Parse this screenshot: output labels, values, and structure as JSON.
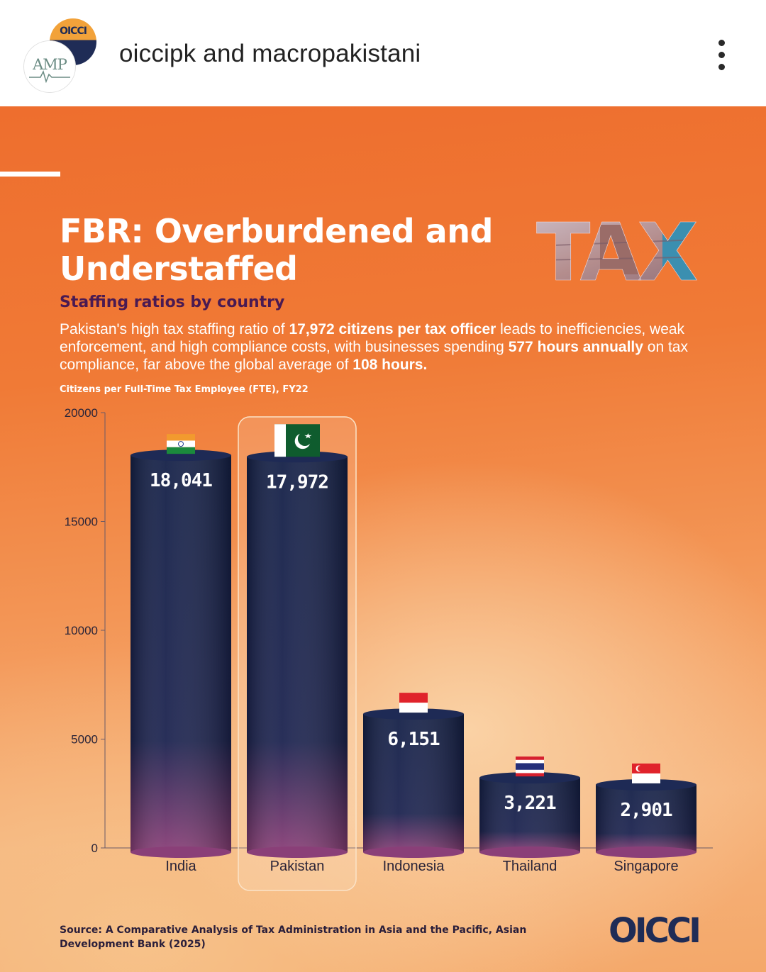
{
  "post": {
    "accounts": "oiccipk and macropakistani",
    "avatar_back_text": "OICCI",
    "avatar_front_text": "AMP"
  },
  "infographic": {
    "headline": "FBR: Overburdened and Understaffed",
    "subheading": "Staffing ratios by country",
    "description_parts": [
      "Pakistan's high tax staffing ratio of ",
      "17,972 citizens per tax officer",
      " leads to inefficiencies, weak enforcement, and high compliance costs, with businesses spending ",
      "577 hours annually",
      " on tax compliance, far above the global average of ",
      "108 hours."
    ],
    "tax_logo_text": "TAX",
    "chart_caption": "Citizens per Full-Time Tax Employee (FTE), FY22",
    "source": "Source: A Comparative Analysis of Tax Administration in Asia and the Pacific, Asian Development Bank (2025)",
    "brand": "OICCI"
  },
  "chart_data": {
    "type": "bar",
    "title": "",
    "xlabel": "",
    "ylabel": "Citizens per Full-Time Tax Employee (FTE), FY22",
    "ylim": [
      0,
      20000
    ],
    "yticks": [
      0,
      5000,
      10000,
      15000,
      20000
    ],
    "categories": [
      "India",
      "Pakistan",
      "Indonesia",
      "Thailand",
      "Singapore"
    ],
    "values": [
      18041,
      17972,
      6151,
      3221,
      2901
    ],
    "data_labels": [
      "18,041",
      "17,972",
      "6,151",
      "3,221",
      "2,901"
    ],
    "highlighted_category": "Pakistan",
    "flags": [
      "india-flag-icon",
      "pakistan-flag-icon",
      "indonesia-flag-icon",
      "thailand-flag-icon",
      "singapore-flag-icon"
    ],
    "grid": false,
    "colors": {
      "bar_top": "#152148",
      "bar_bottom": "#8a3f78",
      "bar_cap": "#1e2a55",
      "highlight_border": "#fbe3c8",
      "axis": "#6b5a66",
      "tick_text": "#2a2438"
    }
  }
}
